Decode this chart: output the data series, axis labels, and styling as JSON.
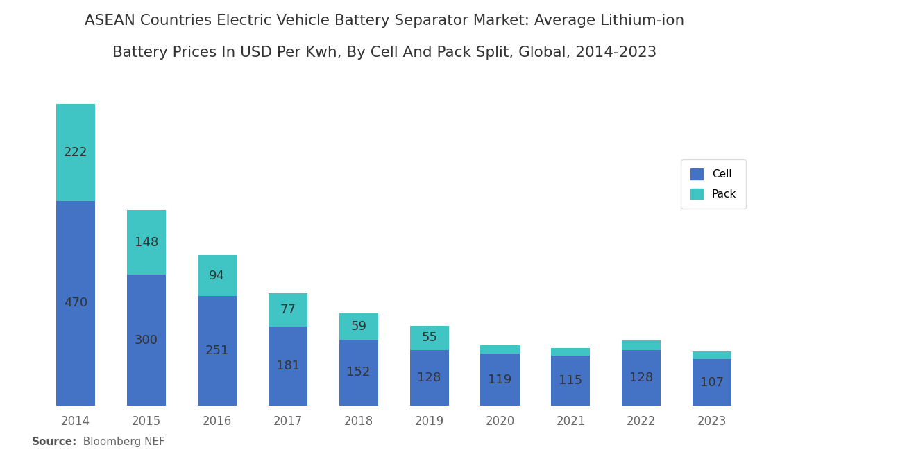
{
  "title_line1": "ASEAN Countries Electric Vehicle Battery Separator Market: Average Lithium-ion",
  "title_line2": "Battery Prices In USD Per Kwh, By Cell And Pack Split, Global, 2014-2023",
  "years": [
    "2014",
    "2015",
    "2016",
    "2017",
    "2018",
    "2019",
    "2020",
    "2021",
    "2022",
    "2023"
  ],
  "cell_values": [
    470,
    300,
    251,
    181,
    152,
    128,
    119,
    115,
    128,
    107
  ],
  "pack_values": [
    222,
    148,
    94,
    77,
    59,
    55,
    0,
    0,
    0,
    0
  ],
  "pack_small": [
    0,
    0,
    0,
    0,
    0,
    0,
    20,
    18,
    22,
    18
  ],
  "cell_color": "#4472C4",
  "pack_color": "#40C4C4",
  "background_color": "#FFFFFF",
  "source_bold": "Source:",
  "source_normal": "  Bloomberg NEF",
  "legend_labels": [
    "Cell",
    "Pack"
  ],
  "ylim": [
    0,
    740
  ],
  "bar_width": 0.55,
  "title_fontsize": 15.5,
  "label_fontsize": 13,
  "tick_fontsize": 12,
  "source_fontsize": 11,
  "label_color": "#333333"
}
